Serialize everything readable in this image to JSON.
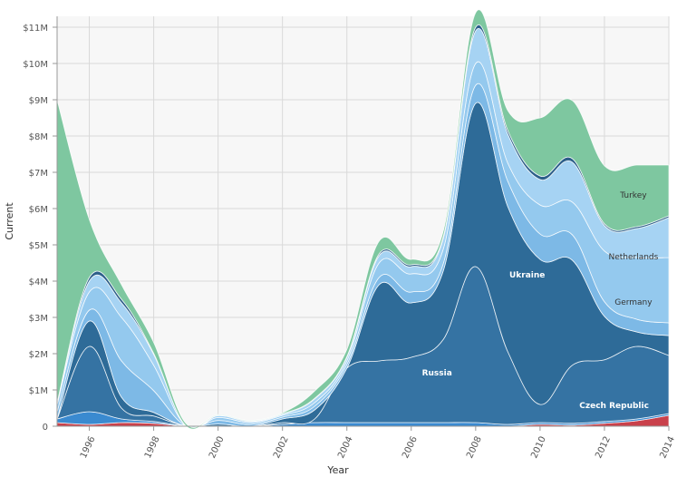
{
  "chart_data": {
    "type": "area",
    "stacked": true,
    "xlabel": "Year",
    "ylabel": "Current",
    "xlim": [
      1995,
      2014
    ],
    "ylim": [
      0,
      11300000
    ],
    "grid": true,
    "legend": "none",
    "x_ticks": [
      1996,
      1998,
      2000,
      2002,
      2004,
      2006,
      2008,
      2010,
      2012,
      2014
    ],
    "x_tick_labels": [
      "1996",
      "1998",
      "2000",
      "2002",
      "2004",
      "2006",
      "2008",
      "2010",
      "2012",
      "2014"
    ],
    "y_ticks": [
      0,
      1000000,
      2000000,
      3000000,
      4000000,
      5000000,
      6000000,
      7000000,
      8000000,
      9000000,
      10000000,
      11000000
    ],
    "y_tick_labels": [
      "0",
      "$1M",
      "$2M",
      "$3M",
      "$4M",
      "$5M",
      "$6M",
      "$7M",
      "$8M",
      "$9M",
      "$10M",
      "$11M"
    ],
    "x": [
      1995,
      1996,
      1997,
      1998,
      1999,
      2000,
      2001,
      2002,
      2003,
      2004,
      2005,
      2006,
      2007,
      2008,
      2009,
      2010,
      2011,
      2012,
      2013,
      2014
    ],
    "series": [
      {
        "name": "Czech Republic",
        "color": "#c9414b",
        "label_at": [
          2012.3,
          0.5
        ],
        "values": [
          100000,
          50000,
          100000,
          80000,
          0,
          0,
          0,
          0,
          0,
          0,
          0,
          0,
          0,
          0,
          0,
          50000,
          30000,
          80000,
          150000,
          300000
        ]
      },
      {
        "name": "",
        "color": "#3a8ad0",
        "values": [
          100000,
          350000,
          100000,
          50000,
          10000,
          10000,
          0,
          50000,
          100000,
          100000,
          100000,
          100000,
          100000,
          100000,
          50000,
          50000,
          50000,
          50000,
          50000,
          50000
        ]
      },
      {
        "name": "Russia",
        "color": "#3573a3",
        "label_at": [
          2006.8,
          1.4
        ],
        "values": [
          0,
          1800000,
          300000,
          150000,
          0,
          0,
          0,
          50000,
          100000,
          1500000,
          1700000,
          1800000,
          2300000,
          4300000,
          2000000,
          500000,
          1600000,
          1700000,
          2000000,
          1600000
        ]
      },
      {
        "name": "Ukraine",
        "color": "#2e6b98",
        "label_at": [
          2009.6,
          4.1
        ],
        "values": [
          0,
          700000,
          300000,
          100000,
          0,
          50000,
          0,
          100000,
          250000,
          0,
          2100000,
          1500000,
          1900000,
          4500000,
          4000000,
          4000000,
          2900000,
          1200000,
          400000,
          550000
        ]
      },
      {
        "name": "",
        "color": "#7db9e6",
        "values": [
          200000,
          300000,
          1000000,
          600000,
          0,
          100000,
          50000,
          50000,
          100000,
          100000,
          200000,
          300000,
          200000,
          500000,
          700000,
          700000,
          700000,
          400000,
          350000,
          350000
        ]
      },
      {
        "name": "Germany",
        "color": "#94c9ee",
        "label_at": [
          2012.9,
          3.35
        ],
        "values": [
          200000,
          500000,
          1200000,
          700000,
          0,
          80000,
          50000,
          50000,
          100000,
          100000,
          400000,
          500000,
          400000,
          600000,
          500000,
          800000,
          900000,
          1400000,
          1700000,
          1800000
        ]
      },
      {
        "name": "Netherlands",
        "color": "#a6d3f3",
        "label_at": [
          2012.9,
          4.6
        ],
        "values": [
          0,
          300000,
          400000,
          300000,
          0,
          50000,
          30000,
          30000,
          100000,
          100000,
          200000,
          200000,
          300000,
          900000,
          800000,
          700000,
          1100000,
          700000,
          800000,
          1100000
        ]
      },
      {
        "name": "",
        "color": "#2c5f8a",
        "values": [
          50000,
          100000,
          100000,
          30000,
          0,
          10000,
          10000,
          10000,
          20000,
          20000,
          50000,
          50000,
          50000,
          100000,
          100000,
          100000,
          100000,
          50000,
          50000,
          50000
        ]
      },
      {
        "name": "Turkey",
        "color": "#7ec7a0",
        "label_at": [
          2012.9,
          6.3
        ],
        "values": [
          8350000,
          1600000,
          400000,
          300000,
          70000,
          20000,
          20000,
          30000,
          200000,
          200000,
          350000,
          150000,
          150000,
          400000,
          550000,
          1600000,
          1600000,
          1600000,
          1700000,
          1400000
        ]
      }
    ]
  }
}
